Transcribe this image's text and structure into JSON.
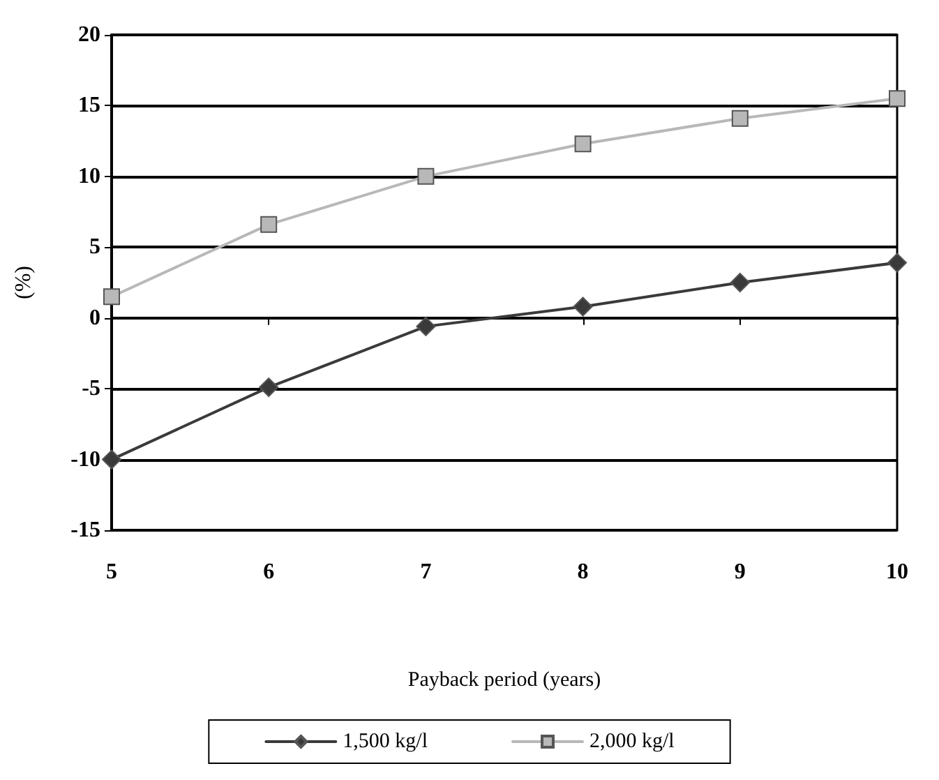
{
  "chart_data": {
    "type": "line",
    "xlabel": "Payback period (years)",
    "ylabel": "(%)",
    "x": [
      5,
      6,
      7,
      8,
      9,
      10
    ],
    "xlim": [
      5,
      10
    ],
    "xticks": [
      5,
      6,
      7,
      8,
      9,
      10
    ],
    "ylim": [
      -15,
      20
    ],
    "yticks": [
      -15,
      -10,
      -5,
      0,
      5,
      10,
      15,
      20
    ],
    "grid": "y",
    "legend": "bottom",
    "line_style": "solid",
    "series": [
      {
        "name": "1,500 kg/l",
        "color": "#3a3a3a",
        "marker": "diamond",
        "values": [
          -10,
          -4.9,
          -0.6,
          0.8,
          2.5,
          3.9
        ]
      },
      {
        "name": "2,000 kg/l",
        "color": "#b8b8b8",
        "marker": "square",
        "values": [
          1.5,
          6.6,
          10.0,
          12.3,
          14.1,
          15.5
        ]
      }
    ]
  }
}
